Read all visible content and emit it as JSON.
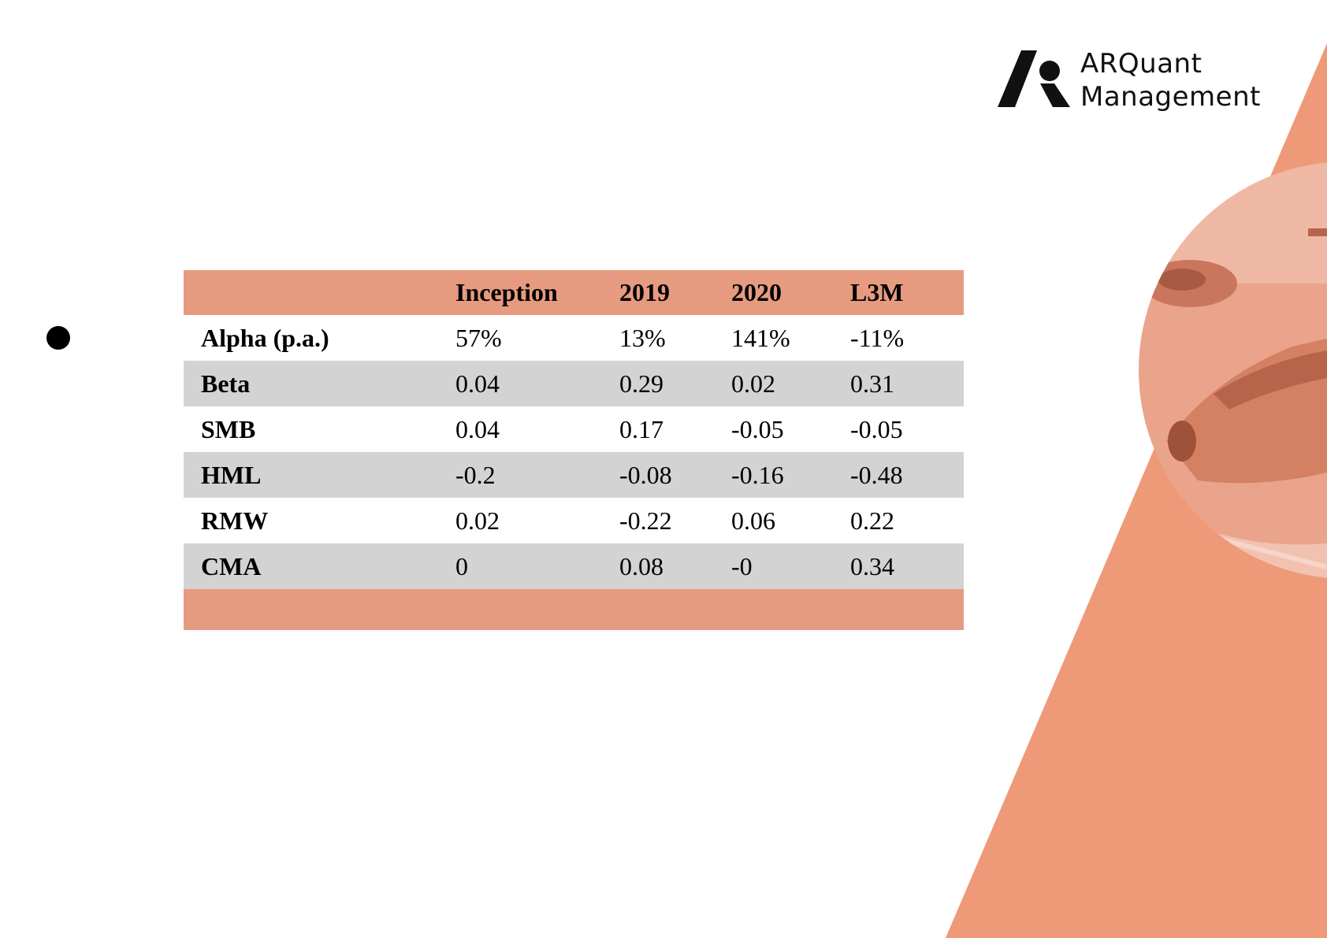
{
  "brand": {
    "line1": "ARQuant",
    "line2": "Management",
    "accent_color": "#ee9a78",
    "icon": "arquant-logo-icon"
  },
  "decoration": {
    "photo": "race-car-photo-circle",
    "stripe": "diagonal-orange-stripe"
  },
  "bullet": "bullet-icon",
  "table": {
    "headers": [
      "",
      "Inception",
      "2019",
      "2020",
      "L3M"
    ],
    "rows": [
      {
        "label": "Alpha (p.a.)",
        "values": [
          "57%",
          "13%",
          "141%",
          "-11%"
        ]
      },
      {
        "label": "Beta",
        "values": [
          "0.04",
          "0.29",
          "0.02",
          "0.31"
        ]
      },
      {
        "label": "SMB",
        "values": [
          "0.04",
          "0.17",
          "-0.05",
          "-0.05"
        ]
      },
      {
        "label": "HML",
        "values": [
          "-0.2",
          "-0.08",
          "-0.16",
          "-0.48"
        ]
      },
      {
        "label": "RMW",
        "values": [
          "0.02",
          "-0.22",
          "0.06",
          "0.22"
        ]
      },
      {
        "label": "CMA",
        "values": [
          "0",
          "0.08",
          "-0",
          "0.34"
        ]
      }
    ],
    "header_color": "#e69b80",
    "stripe_color": "#d3d3d3"
  }
}
